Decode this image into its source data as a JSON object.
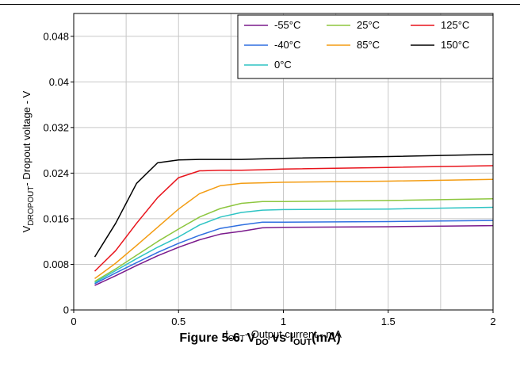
{
  "chart_data": {
    "type": "line",
    "ylabel_parts": {
      "main": "V",
      "sub": "DROPOUT",
      "rest": "- Dropout voltage - V"
    },
    "xlabel_parts": {
      "main": "I",
      "sub": "OUT",
      "rest": "- Output current - mA"
    },
    "xlim": [
      0,
      2
    ],
    "ylim": [
      0,
      0.052
    ],
    "xticks": [
      0,
      0.5,
      1,
      1.5,
      2
    ],
    "xtick_labels": [
      "0",
      "0.5",
      "1",
      "1.5",
      "2"
    ],
    "yticks": [
      0,
      0.008,
      0.016,
      0.024,
      0.032,
      0.04,
      0.048
    ],
    "ytick_labels": [
      "0",
      "0.008",
      "0.016",
      "0.024",
      "0.032",
      "0.04",
      "0.048"
    ],
    "grid": true,
    "legend_placement": "top-right",
    "x": [
      0.1,
      0.2,
      0.3,
      0.4,
      0.5,
      0.6,
      0.7,
      0.8,
      0.9,
      1.0,
      1.5,
      2.0
    ],
    "series": [
      {
        "name": "-55°C",
        "color": "#7a1a8c",
        "values": [
          0.0043,
          0.006,
          0.0078,
          0.0095,
          0.011,
          0.0123,
          0.0133,
          0.0138,
          0.0144,
          0.0145,
          0.0146,
          0.0148
        ]
      },
      {
        "name": "-40°C",
        "color": "#2f6fe0",
        "values": [
          0.0046,
          0.0065,
          0.0083,
          0.0101,
          0.0117,
          0.0131,
          0.0143,
          0.0149,
          0.0154,
          0.0154,
          0.0155,
          0.0157
        ]
      },
      {
        "name": "0°C",
        "color": "#2ec4c4",
        "values": [
          0.0048,
          0.0069,
          0.009,
          0.011,
          0.0128,
          0.0149,
          0.0163,
          0.0171,
          0.0175,
          0.0176,
          0.0177,
          0.018
        ]
      },
      {
        "name": "25°C",
        "color": "#8dc63f",
        "values": [
          0.005,
          0.0072,
          0.0096,
          0.012,
          0.0142,
          0.0163,
          0.0178,
          0.0187,
          0.019,
          0.019,
          0.0192,
          0.0195
        ]
      },
      {
        "name": "85°C",
        "color": "#f39c12",
        "values": [
          0.0055,
          0.0082,
          0.0113,
          0.0145,
          0.0177,
          0.0204,
          0.0218,
          0.0222,
          0.0223,
          0.0224,
          0.0226,
          0.0229
        ]
      },
      {
        "name": "125°C",
        "color": "#e8141c",
        "values": [
          0.0068,
          0.0104,
          0.0152,
          0.0197,
          0.0232,
          0.0244,
          0.0245,
          0.0245,
          0.0246,
          0.0247,
          0.025,
          0.0253
        ]
      },
      {
        "name": "150°C",
        "color": "#000000",
        "values": [
          0.0093,
          0.0152,
          0.0222,
          0.0258,
          0.0263,
          0.0264,
          0.0264,
          0.0264,
          0.0265,
          0.0266,
          0.0269,
          0.0273
        ]
      }
    ]
  },
  "caption": {
    "prefix": "Figure 5-6. V",
    "sub1": "DO",
    "middle": " vs I",
    "sub2": "OUT",
    "suffix": "(mA)"
  }
}
